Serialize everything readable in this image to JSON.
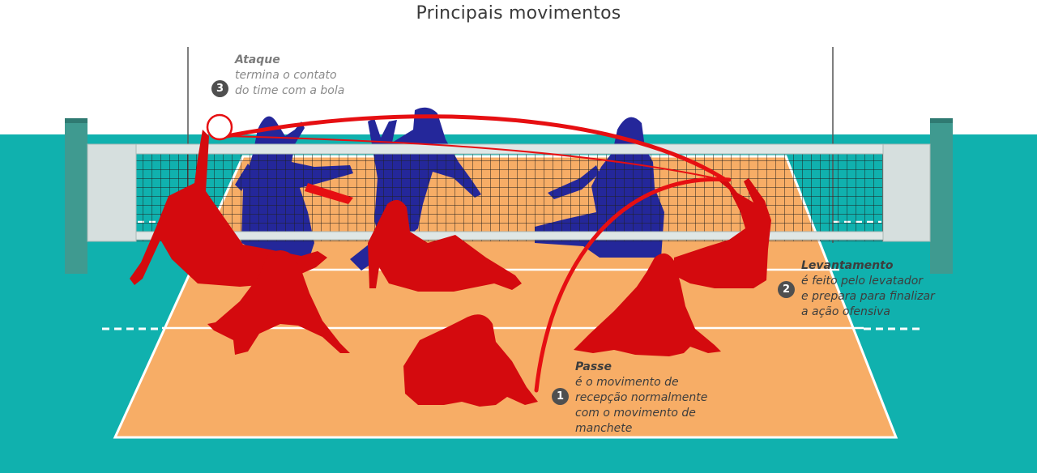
{
  "title": "Principais movimentos",
  "colors": {
    "floor": "#10b1ae",
    "court": "#f7ad66",
    "court_line": "#ffffff",
    "team_red": "#d40a0e",
    "team_blue": "#24279a",
    "net_post": "#3f9a90",
    "trajectory": "#e60f12",
    "badge": "#4f4f4f"
  },
  "annotations": {
    "ataque": {
      "number": "3",
      "title": "Ataque",
      "description": "termina o contato\ndo time com a bola"
    },
    "levantamento": {
      "number": "2",
      "title": "Levantamento",
      "description": "é feito pelo levatador\ne prepara para finalizar\na ação ofensiva"
    },
    "passe": {
      "number": "1",
      "title": "Passe",
      "description": "é o movimento de\nrecepção normalmente\ncom o movimento de\nmanchete"
    }
  },
  "icons": {
    "ball": "volleyball-icon",
    "net": "net-icon"
  }
}
